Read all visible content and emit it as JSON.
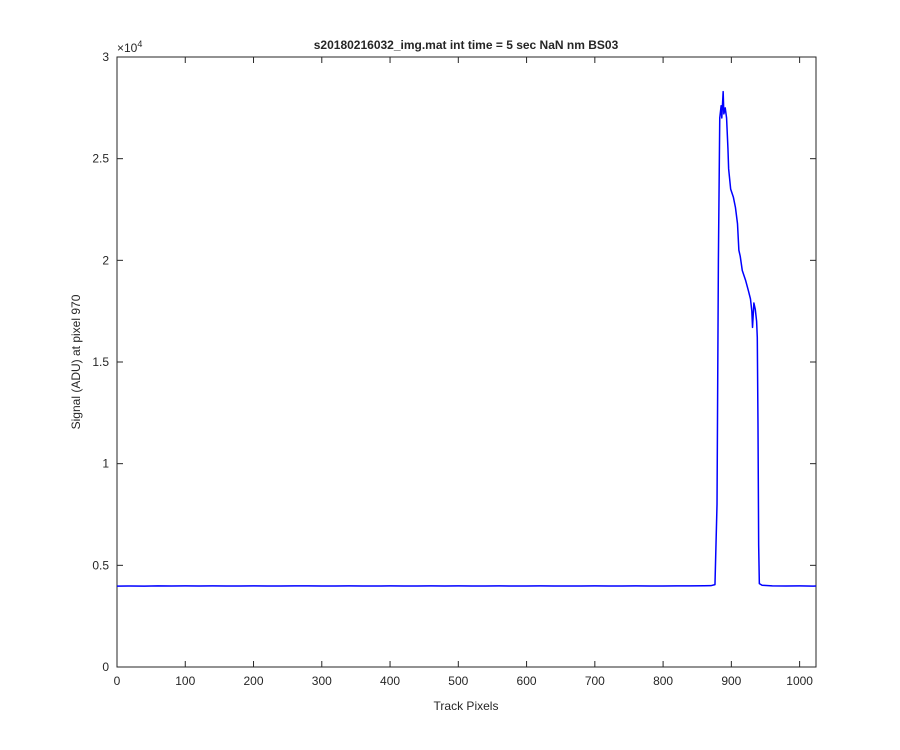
{
  "chart_data": {
    "type": "line",
    "title": "s20180216032_img.mat int time = 5 sec  NaN nm BS03",
    "x_label": "Track Pixels",
    "y_label": "Signal (ADU) at pixel 970",
    "y_multiplier_base": "×10",
    "y_multiplier_exponent": "4",
    "color": "#0000ff",
    "x": [
      0,
      20,
      40,
      60,
      80,
      100,
      120,
      140,
      160,
      180,
      200,
      220,
      240,
      260,
      280,
      300,
      320,
      340,
      360,
      380,
      400,
      420,
      440,
      460,
      480,
      500,
      520,
      540,
      560,
      580,
      600,
      620,
      640,
      660,
      680,
      700,
      720,
      740,
      760,
      780,
      800,
      820,
      840,
      860,
      870,
      876,
      879,
      881,
      883,
      885,
      886,
      888,
      889,
      891,
      893,
      895,
      896,
      899,
      903,
      906,
      909,
      911,
      913,
      916,
      921,
      925,
      928,
      930,
      931,
      933,
      935,
      937,
      938,
      939,
      940,
      941,
      945,
      960,
      980,
      1000,
      1020,
      1024
    ],
    "values": [
      3980,
      3985,
      3978,
      3990,
      3982,
      3988,
      3984,
      3990,
      3986,
      3981,
      3989,
      3985,
      3983,
      3987,
      3990,
      3984,
      3982,
      3988,
      3986,
      3983,
      3989,
      3985,
      3984,
      3987,
      3982,
      3990,
      3986,
      3983,
      3988,
      3984,
      3985,
      3989,
      3983,
      3986,
      3984,
      3988,
      3985,
      3982,
      3989,
      3986,
      3984,
      3990,
      3987,
      3995,
      4000,
      4050,
      8000,
      20000,
      27000,
      27600,
      27000,
      28300,
      27200,
      27500,
      27000,
      25500,
      24500,
      23500,
      23100,
      22600,
      21800,
      20500,
      20200,
      19500,
      19000,
      18500,
      18100,
      17500,
      16700,
      17900,
      17600,
      17000,
      16200,
      12000,
      6000,
      4100,
      4020,
      3990,
      3985,
      3990,
      3980,
      3985
    ],
    "xlim": [
      0,
      1024
    ],
    "ylim": [
      0,
      30000
    ],
    "xticks": [
      0,
      100,
      200,
      300,
      400,
      500,
      600,
      700,
      800,
      900,
      1000
    ],
    "yticks": [
      0,
      {
        "value": 5000,
        "label": "0.5"
      },
      {
        "value": 10000,
        "label": "1"
      },
      {
        "value": 15000,
        "label": "1.5"
      },
      {
        "value": 20000,
        "label": "2"
      },
      {
        "value": 25000,
        "label": "2.5"
      },
      {
        "value": 30000,
        "label": "3"
      }
    ],
    "grid": false
  }
}
